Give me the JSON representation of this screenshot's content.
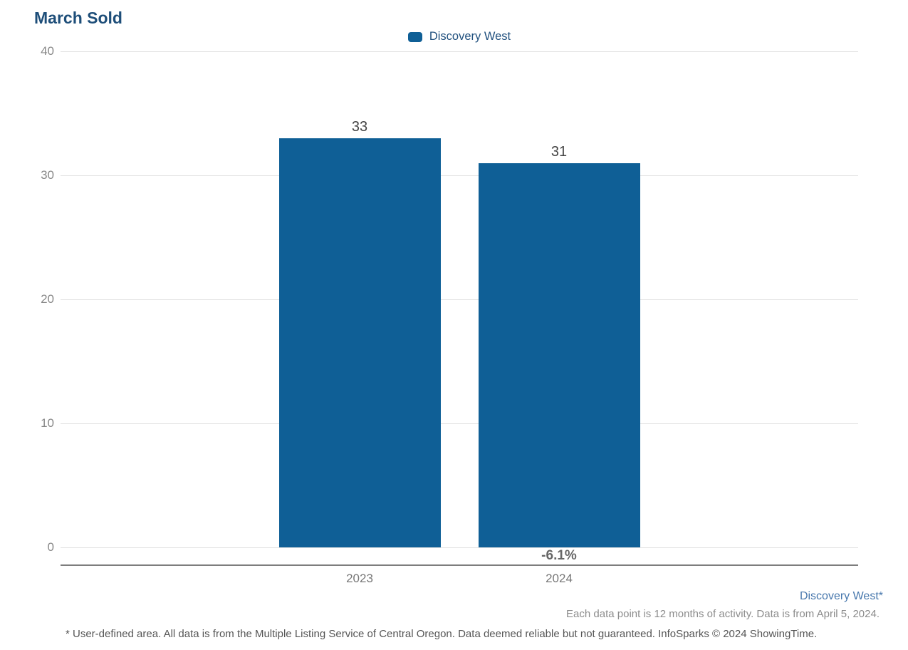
{
  "title": "March Sold",
  "legend": {
    "label": "Discovery West"
  },
  "colors": {
    "bar": "#0f5f96",
    "title": "#1e4e79",
    "series_link": "#4878ad"
  },
  "chart_data": {
    "type": "bar",
    "title": "March Sold",
    "series": [
      {
        "name": "Discovery West",
        "values": [
          33,
          31
        ]
      }
    ],
    "categories": [
      "2023",
      "2024"
    ],
    "value_labels": [
      "33",
      "31"
    ],
    "change_labels": [
      "",
      "-6.1%"
    ],
    "xlabel": "",
    "ylabel": "",
    "ylim": [
      0,
      40
    ],
    "yticks": [
      0,
      10,
      20,
      30,
      40
    ],
    "grid": "horizontal",
    "legend_position": "top-center"
  },
  "footnotes": {
    "series_note": "Discovery West*",
    "data_note": "Each data point is 12 months of activity. Data is from April 5, 2024.",
    "disclaimer": "* User-defined area. All data is from the Multiple Listing Service of Central Oregon. Data deemed reliable but not guaranteed. InfoSparks © 2024 ShowingTime."
  }
}
